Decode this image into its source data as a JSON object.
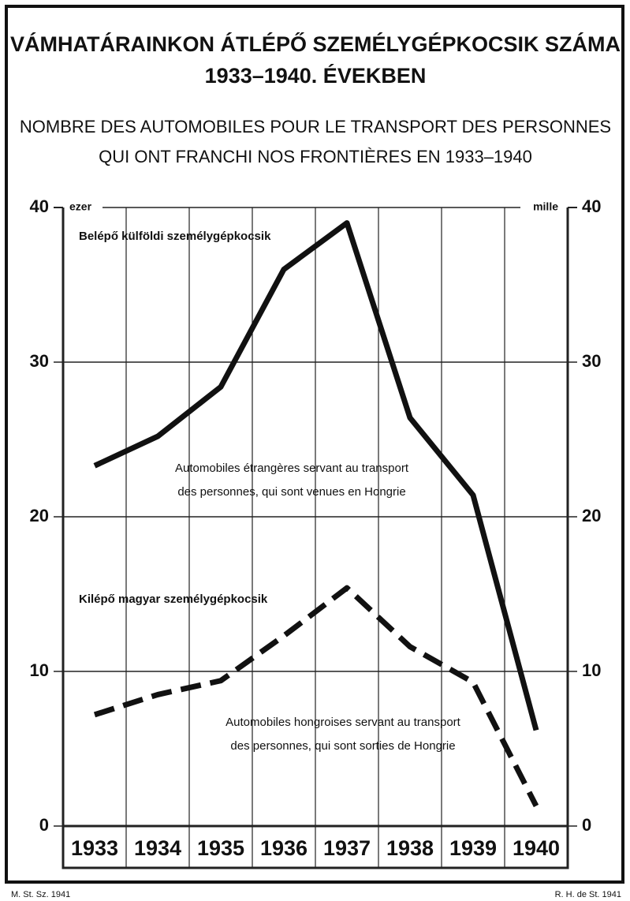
{
  "chart_data": {
    "type": "line",
    "title": [
      "VÁMHATÁRAINKON ÁTLÉPŐ SZEMÉLYGÉPKOCSIK SZÁMA",
      "1933–1940. ÉVEKBEN"
    ],
    "subtitle": [
      "NOMBRE DES AUTOMOBILES POUR LE TRANSPORT DES PERSONNES",
      "QUI ONT FRANCHI NOS FRONTIÈRES EN 1933–1940"
    ],
    "y_unit_left": "ezer",
    "y_unit_right": "mille",
    "categories": [
      "1933",
      "1934",
      "1935",
      "1936",
      "1937",
      "1938",
      "1939",
      "1940"
    ],
    "series": [
      {
        "name": "Belépő külföldi személygépkocsik",
        "color": "#111111",
        "style": "solid",
        "values": [
          23.3,
          25.2,
          28.4,
          36,
          39,
          26.4,
          21.4,
          6.2
        ]
      },
      {
        "name": "Kilépő magyar személygépkocsik",
        "color": "#111111",
        "style": "dashed",
        "values": [
          7.2,
          8.5,
          9.4,
          12.3,
          15.4,
          11.6,
          9.3,
          1.3
        ]
      }
    ],
    "annotations": [
      [
        "Automobiles étrangères servant au transport",
        "des personnes, qui sont venues en Hongrie"
      ],
      [
        "Automobiles hongroises servant au transport",
        "des personnes, qui sont sorties de Hongrie"
      ]
    ],
    "ylim": [
      0,
      40
    ],
    "yticks": [
      0,
      10,
      20,
      30,
      40
    ],
    "grid": true,
    "footer_left": "M. St. Sz. 1941",
    "footer_right": "R. H. de St. 1941"
  }
}
